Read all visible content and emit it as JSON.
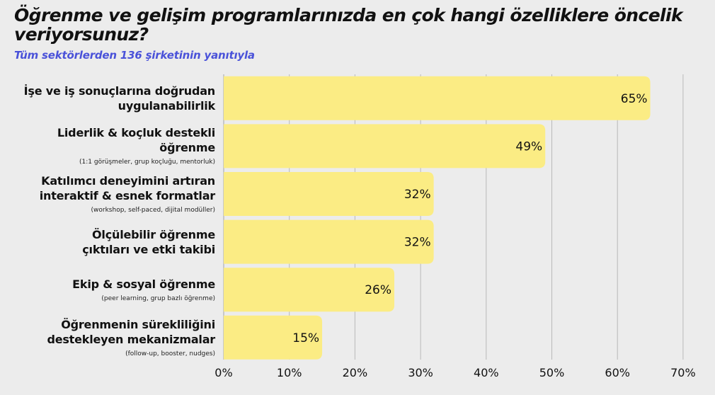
{
  "header": {
    "title": "Öğrenme ve gelişim programlarınızda en çok hangi özelliklere öncelik veriyorsunuz?",
    "subtitle": "Tüm sektörlerden 136 şirketinin yanıtıyla"
  },
  "colors": {
    "bar": "#fbec84",
    "grid": "#b9b9b9",
    "subtitle": "#4a52d9",
    "background": "#ececec"
  },
  "chart_data": {
    "type": "bar",
    "orientation": "horizontal",
    "title": "Öğrenme ve gelişim programlarınızda en çok hangi özelliklere öncelik veriyorsunuz?",
    "subtitle": "Tüm sektörlerden 136 şirketinin yanıtıyla",
    "categories": [
      {
        "label_lines": [
          "İşe ve iş sonuçlarına doğrudan",
          "uygulanabilirlik"
        ],
        "sub": ""
      },
      {
        "label_lines": [
          "Liderlik & koçluk destekli",
          "öğrenme"
        ],
        "sub": "(1:1 görüşmeler, grup koçluğu, mentorluk)"
      },
      {
        "label_lines": [
          "Katılımcı deneyimini artıran",
          "interaktif & esnek formatlar"
        ],
        "sub": "(workshop, self-paced, dijital modüller)"
      },
      {
        "label_lines": [
          "Ölçülebilir öğrenme",
          "çıktıları ve etki takibi"
        ],
        "sub": ""
      },
      {
        "label_lines": [
          "Ekip & sosyal öğrenme"
        ],
        "sub": "(peer learning, grup bazlı öğrenme)"
      },
      {
        "label_lines": [
          "Öğrenmenin sürekliliğini",
          "destekleyen mekanizmalar"
        ],
        "sub": "(follow-up, booster, nudges)"
      }
    ],
    "values": [
      65,
      49,
      32,
      32,
      26,
      15
    ],
    "value_labels": [
      "65%",
      "49%",
      "32%",
      "32%",
      "26%",
      "15%"
    ],
    "xlim": [
      0,
      70
    ],
    "xticks": [
      0,
      10,
      20,
      30,
      40,
      50,
      60,
      70
    ],
    "xtick_labels": [
      "0%",
      "10%",
      "20%",
      "30%",
      "40%",
      "50%",
      "60%",
      "70%"
    ],
    "grid": "vertical",
    "legend": "none"
  }
}
